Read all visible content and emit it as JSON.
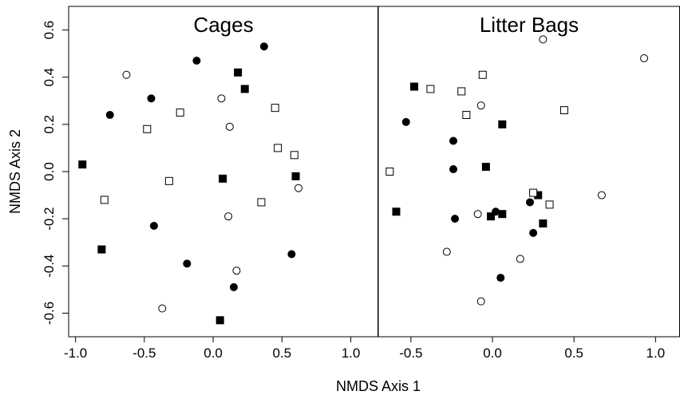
{
  "chart_data": {
    "type": "scatter",
    "xlabel": "NMDS Axis 1",
    "ylabel": "NMDS Axis 2",
    "ylim": [
      -0.7,
      0.7
    ],
    "y_ticks": [
      -0.6,
      -0.4,
      -0.2,
      0.0,
      0.2,
      0.4,
      0.6
    ],
    "y_tick_labels": [
      "-0.6",
      "-0.4",
      "-0.2",
      "0.0",
      "0.2",
      "0.4",
      "0.6"
    ],
    "legend": "none",
    "grid": false,
    "marker_styles": {
      "filled-circle": "#000000",
      "open-circle": "#ffffff",
      "filled-square": "#000000",
      "open-square": "#ffffff"
    },
    "panels": [
      {
        "title": "Cages",
        "xlim": [
          -1.05,
          1.2
        ],
        "x_ticks": [
          -1.0,
          -0.5,
          0.0,
          0.5,
          1.0
        ],
        "x_tick_labels": [
          "-1.0",
          "-0.5",
          "0.0",
          "0.5",
          "1.0"
        ],
        "points": [
          {
            "x": 0.37,
            "y": 0.53,
            "marker": "filled-circle"
          },
          {
            "x": -0.12,
            "y": 0.47,
            "marker": "filled-circle"
          },
          {
            "x": -0.45,
            "y": 0.31,
            "marker": "filled-circle"
          },
          {
            "x": -0.75,
            "y": 0.24,
            "marker": "filled-circle"
          },
          {
            "x": -0.43,
            "y": -0.23,
            "marker": "filled-circle"
          },
          {
            "x": -0.19,
            "y": -0.39,
            "marker": "filled-circle"
          },
          {
            "x": 0.15,
            "y": -0.49,
            "marker": "filled-circle"
          },
          {
            "x": 0.57,
            "y": -0.35,
            "marker": "filled-circle"
          },
          {
            "x": -0.63,
            "y": 0.41,
            "marker": "open-circle"
          },
          {
            "x": 0.06,
            "y": 0.31,
            "marker": "open-circle"
          },
          {
            "x": 0.12,
            "y": 0.19,
            "marker": "open-circle"
          },
          {
            "x": 0.62,
            "y": -0.07,
            "marker": "open-circle"
          },
          {
            "x": 0.11,
            "y": -0.19,
            "marker": "open-circle"
          },
          {
            "x": 0.17,
            "y": -0.42,
            "marker": "open-circle"
          },
          {
            "x": -0.37,
            "y": -0.58,
            "marker": "open-circle"
          },
          {
            "x": 0.18,
            "y": 0.42,
            "marker": "filled-square"
          },
          {
            "x": 0.23,
            "y": 0.35,
            "marker": "filled-square"
          },
          {
            "x": -0.95,
            "y": 0.03,
            "marker": "filled-square"
          },
          {
            "x": 0.07,
            "y": -0.03,
            "marker": "filled-square"
          },
          {
            "x": 0.6,
            "y": -0.02,
            "marker": "filled-square"
          },
          {
            "x": -0.81,
            "y": -0.33,
            "marker": "filled-square"
          },
          {
            "x": 0.05,
            "y": -0.63,
            "marker": "filled-square"
          },
          {
            "x": -0.24,
            "y": 0.25,
            "marker": "open-square"
          },
          {
            "x": -0.48,
            "y": 0.18,
            "marker": "open-square"
          },
          {
            "x": 0.45,
            "y": 0.27,
            "marker": "open-square"
          },
          {
            "x": 0.47,
            "y": 0.1,
            "marker": "open-square"
          },
          {
            "x": 0.59,
            "y": 0.07,
            "marker": "open-square"
          },
          {
            "x": -0.32,
            "y": -0.04,
            "marker": "open-square"
          },
          {
            "x": -0.79,
            "y": -0.12,
            "marker": "open-square"
          },
          {
            "x": 0.35,
            "y": -0.13,
            "marker": "open-square"
          }
        ]
      },
      {
        "title": "Litter Bags",
        "xlim": [
          -0.7,
          1.15
        ],
        "x_ticks": [
          -0.5,
          0.0,
          0.5,
          1.0
        ],
        "x_tick_labels": [
          "-0.5",
          "0.0",
          "0.5",
          "1.0"
        ],
        "points": [
          {
            "x": -0.53,
            "y": 0.21,
            "marker": "filled-circle"
          },
          {
            "x": -0.24,
            "y": 0.13,
            "marker": "filled-circle"
          },
          {
            "x": -0.24,
            "y": 0.01,
            "marker": "filled-circle"
          },
          {
            "x": -0.23,
            "y": -0.2,
            "marker": "filled-circle"
          },
          {
            "x": 0.02,
            "y": -0.17,
            "marker": "filled-circle"
          },
          {
            "x": 0.23,
            "y": -0.13,
            "marker": "filled-circle"
          },
          {
            "x": 0.25,
            "y": -0.26,
            "marker": "filled-circle"
          },
          {
            "x": 0.05,
            "y": -0.45,
            "marker": "filled-circle"
          },
          {
            "x": 0.31,
            "y": 0.56,
            "marker": "open-circle"
          },
          {
            "x": 0.93,
            "y": 0.48,
            "marker": "open-circle"
          },
          {
            "x": -0.07,
            "y": 0.28,
            "marker": "open-circle"
          },
          {
            "x": 0.67,
            "y": -0.1,
            "marker": "open-circle"
          },
          {
            "x": -0.09,
            "y": -0.18,
            "marker": "open-circle"
          },
          {
            "x": -0.28,
            "y": -0.34,
            "marker": "open-circle"
          },
          {
            "x": 0.17,
            "y": -0.37,
            "marker": "open-circle"
          },
          {
            "x": -0.07,
            "y": -0.55,
            "marker": "open-circle"
          },
          {
            "x": -0.48,
            "y": 0.36,
            "marker": "filled-square"
          },
          {
            "x": 0.06,
            "y": 0.2,
            "marker": "filled-square"
          },
          {
            "x": -0.04,
            "y": 0.02,
            "marker": "filled-square"
          },
          {
            "x": -0.59,
            "y": -0.17,
            "marker": "filled-square"
          },
          {
            "x": -0.01,
            "y": -0.19,
            "marker": "filled-square"
          },
          {
            "x": 0.06,
            "y": -0.18,
            "marker": "filled-square"
          },
          {
            "x": 0.28,
            "y": -0.1,
            "marker": "filled-square"
          },
          {
            "x": 0.31,
            "y": -0.22,
            "marker": "filled-square"
          },
          {
            "x": -0.38,
            "y": 0.35,
            "marker": "open-square"
          },
          {
            "x": -0.19,
            "y": 0.34,
            "marker": "open-square"
          },
          {
            "x": -0.06,
            "y": 0.41,
            "marker": "open-square"
          },
          {
            "x": -0.16,
            "y": 0.24,
            "marker": "open-square"
          },
          {
            "x": 0.44,
            "y": 0.26,
            "marker": "open-square"
          },
          {
            "x": -0.63,
            "y": 0.0,
            "marker": "open-square"
          },
          {
            "x": 0.25,
            "y": -0.09,
            "marker": "open-square"
          },
          {
            "x": 0.35,
            "y": -0.14,
            "marker": "open-square"
          }
        ]
      }
    ]
  }
}
